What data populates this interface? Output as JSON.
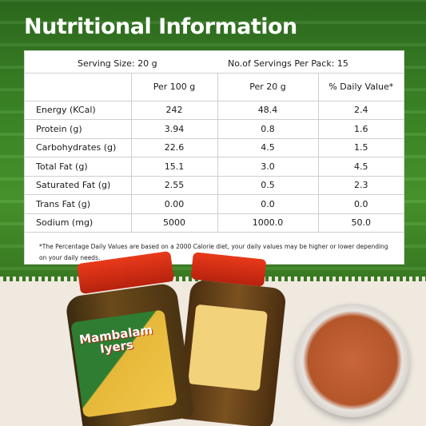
{
  "title": "Nutritional Information",
  "serving_size": "Serving Size: 20 g",
  "servings_per_pack": "No.of Servings Per Pack: 15",
  "columns": [
    "",
    "Per 100 g",
    "Per 20 g",
    "% Daily Value*"
  ],
  "rows": [
    {
      "nutrient": "Energy (KCal)",
      "per100": "242",
      "per20": "48.4",
      "dv": "2.4"
    },
    {
      "nutrient": "Protein (g)",
      "per100": "3.94",
      "per20": "0.8",
      "dv": "1.6"
    },
    {
      "nutrient": "Carbohydrates (g)",
      "per100": "22.6",
      "per20": "4.5",
      "dv": "1.5"
    },
    {
      "nutrient": "Total Fat (g)",
      "per100": "15.1",
      "per20": "3.0",
      "dv": "4.5"
    },
    {
      "nutrient": "Saturated Fat (g)",
      "per100": "2.55",
      "per20": "0.5",
      "dv": "2.3"
    },
    {
      "nutrient": "Trans Fat (g)",
      "per100": "0.00",
      "per20": "0.0",
      "dv": "0.0"
    },
    {
      "nutrient": "Sodium (mg)",
      "per100": "5000",
      "per20": "1000.0",
      "dv": "50.0"
    }
  ],
  "footnote": "*The Percentage Daily Values are based on a 2000 Calorie diet, your daily values may be higher or lower depending on your daily needs.",
  "product": {
    "brand_line1": "Mambalam",
    "brand_line2": "Iyers"
  }
}
